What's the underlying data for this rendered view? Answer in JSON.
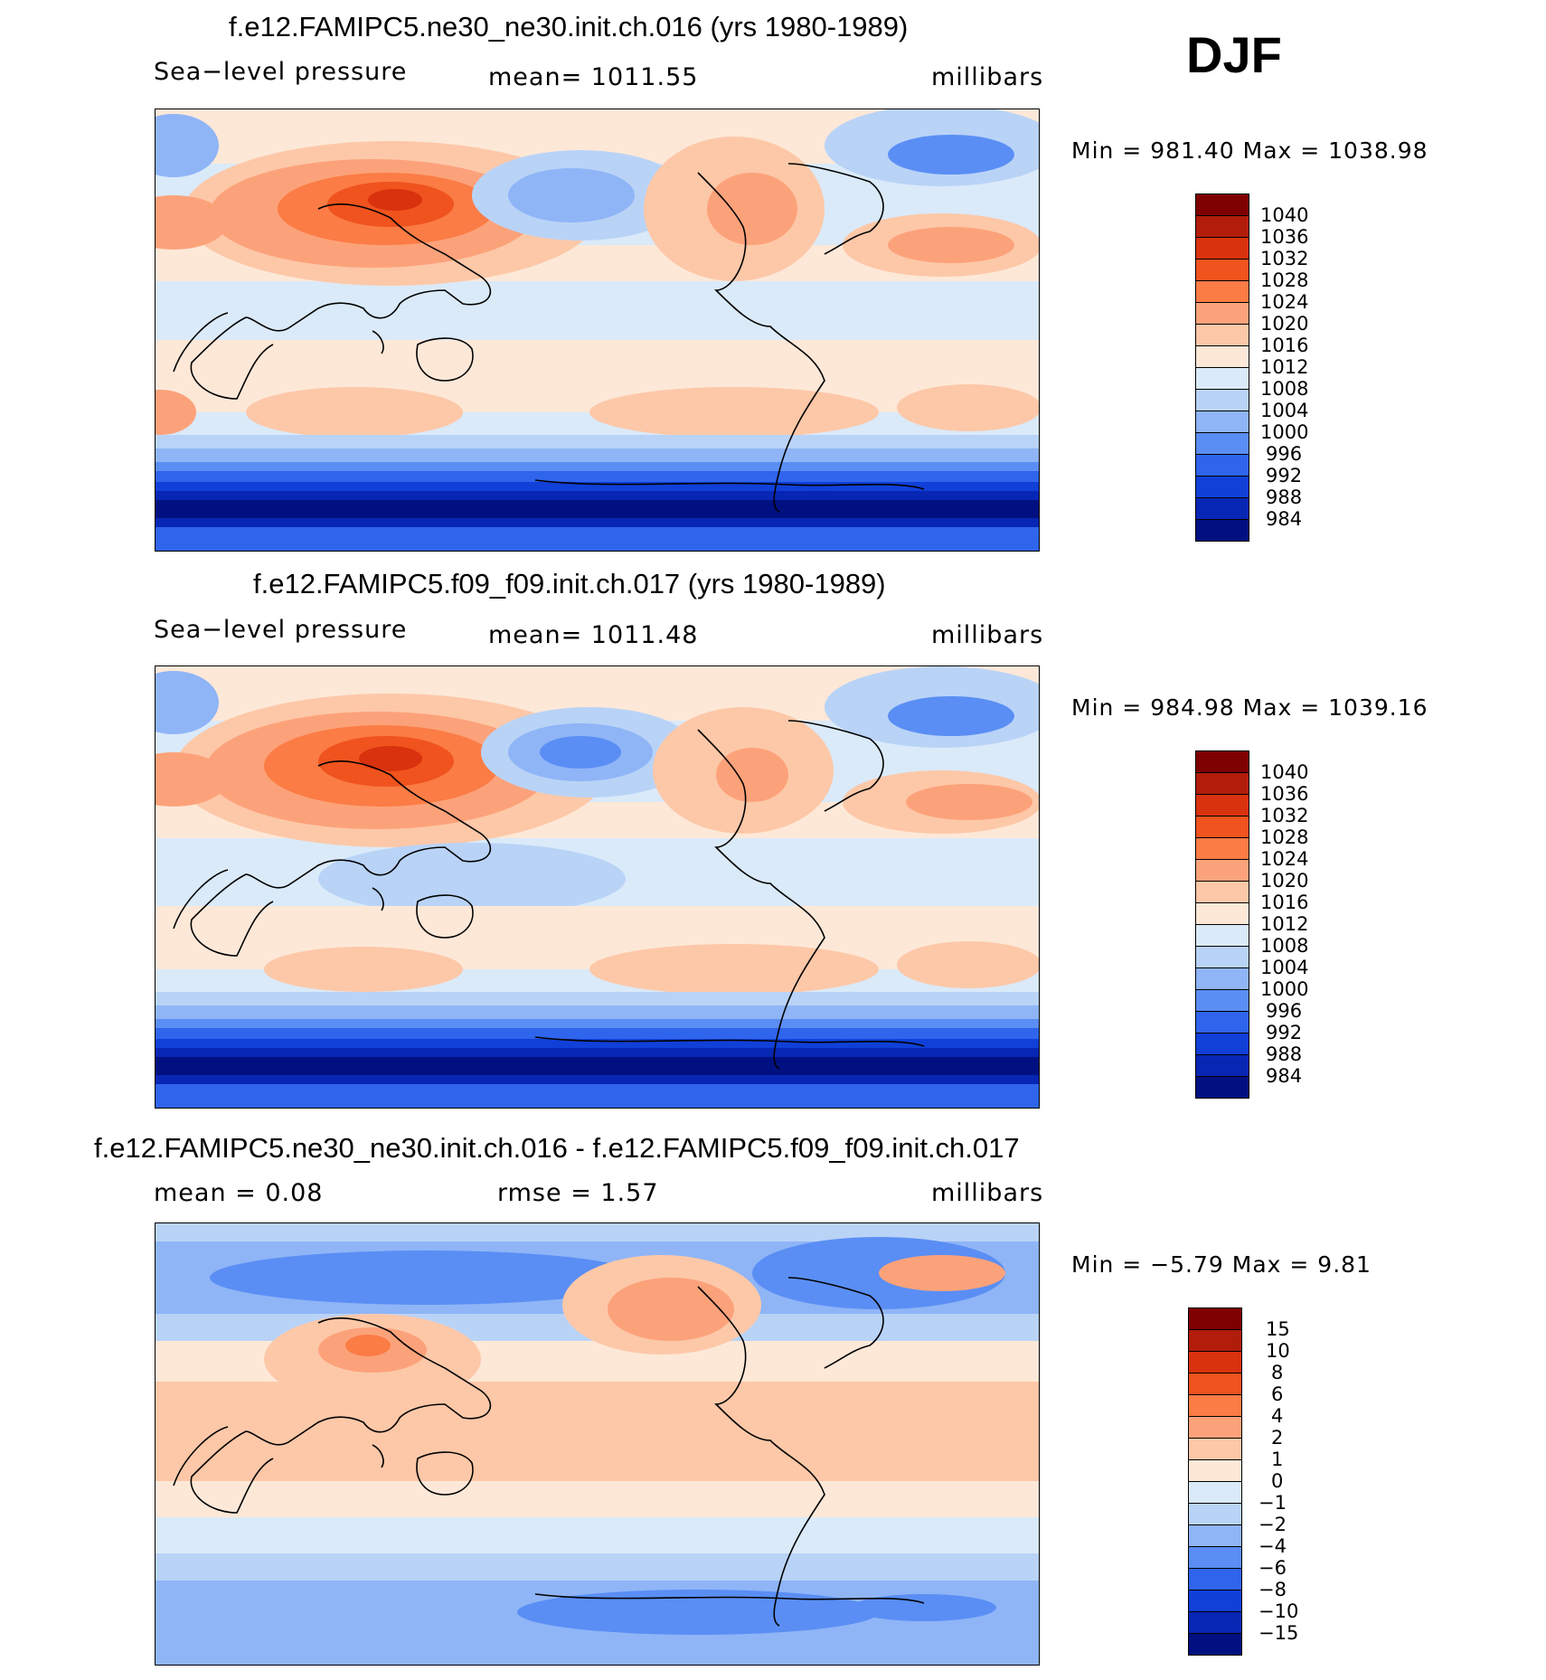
{
  "season": "DJF",
  "panel1": {
    "title": "f.e12.FAMIPC5.ne30_ne30.init.ch.016 (yrs 1980-1989)",
    "variable": "Sea−level pressure",
    "mean": "mean=  1011.55",
    "units": "millibars",
    "minmax": "Min  =  981.40  Max  =  1038.98"
  },
  "panel2": {
    "title": "f.e12.FAMIPC5.f09_f09.init.ch.017 (yrs 1980-1989)",
    "variable": "Sea−level pressure",
    "mean": "mean=  1011.48",
    "units": "millibars",
    "minmax": "Min  =  984.98  Max  =  1039.16"
  },
  "panel3": {
    "title": "f.e12.FAMIPC5.ne30_ne30.init.ch.016 - f.e12.FAMIPC5.f09_f09.init.ch.017",
    "mean": "mean  =     0.08",
    "rmse": "rmse  =     1.57",
    "units": "millibars",
    "minmax": "Min  =    −5.79  Max  =      9.81"
  },
  "colorbar_slp": {
    "labels": [
      "1040",
      "1036",
      "1032",
      "1028",
      "1024",
      "1020",
      "1016",
      "1012",
      "1008",
      "1004",
      "1000",
      "996",
      "992",
      "988",
      "984"
    ],
    "colors": [
      "#7f0000",
      "#b21d0a",
      "#d9320e",
      "#f0531e",
      "#fb7c45",
      "#fca27a",
      "#fdc8a8",
      "#fde8d8",
      "#daeaf9",
      "#b9d3f7",
      "#8fb5f7",
      "#5a8ef4",
      "#2f64ec",
      "#1040d8",
      "#0726b4",
      "#001080"
    ]
  },
  "colorbar_diff": {
    "labels": [
      "15",
      "10",
      "8",
      "6",
      "4",
      "2",
      "1",
      "0",
      "−1",
      "−2",
      "−4",
      "−6",
      "−8",
      "−10",
      "−15"
    ],
    "colors": [
      "#7f0000",
      "#b21d0a",
      "#d9320e",
      "#f0531e",
      "#fb7c45",
      "#fca27a",
      "#fdc8a8",
      "#fde8d8",
      "#daeaf9",
      "#b9d3f7",
      "#8fb5f7",
      "#5a8ef4",
      "#2f64ec",
      "#1040d8",
      "#0726b4",
      "#001080"
    ]
  }
}
